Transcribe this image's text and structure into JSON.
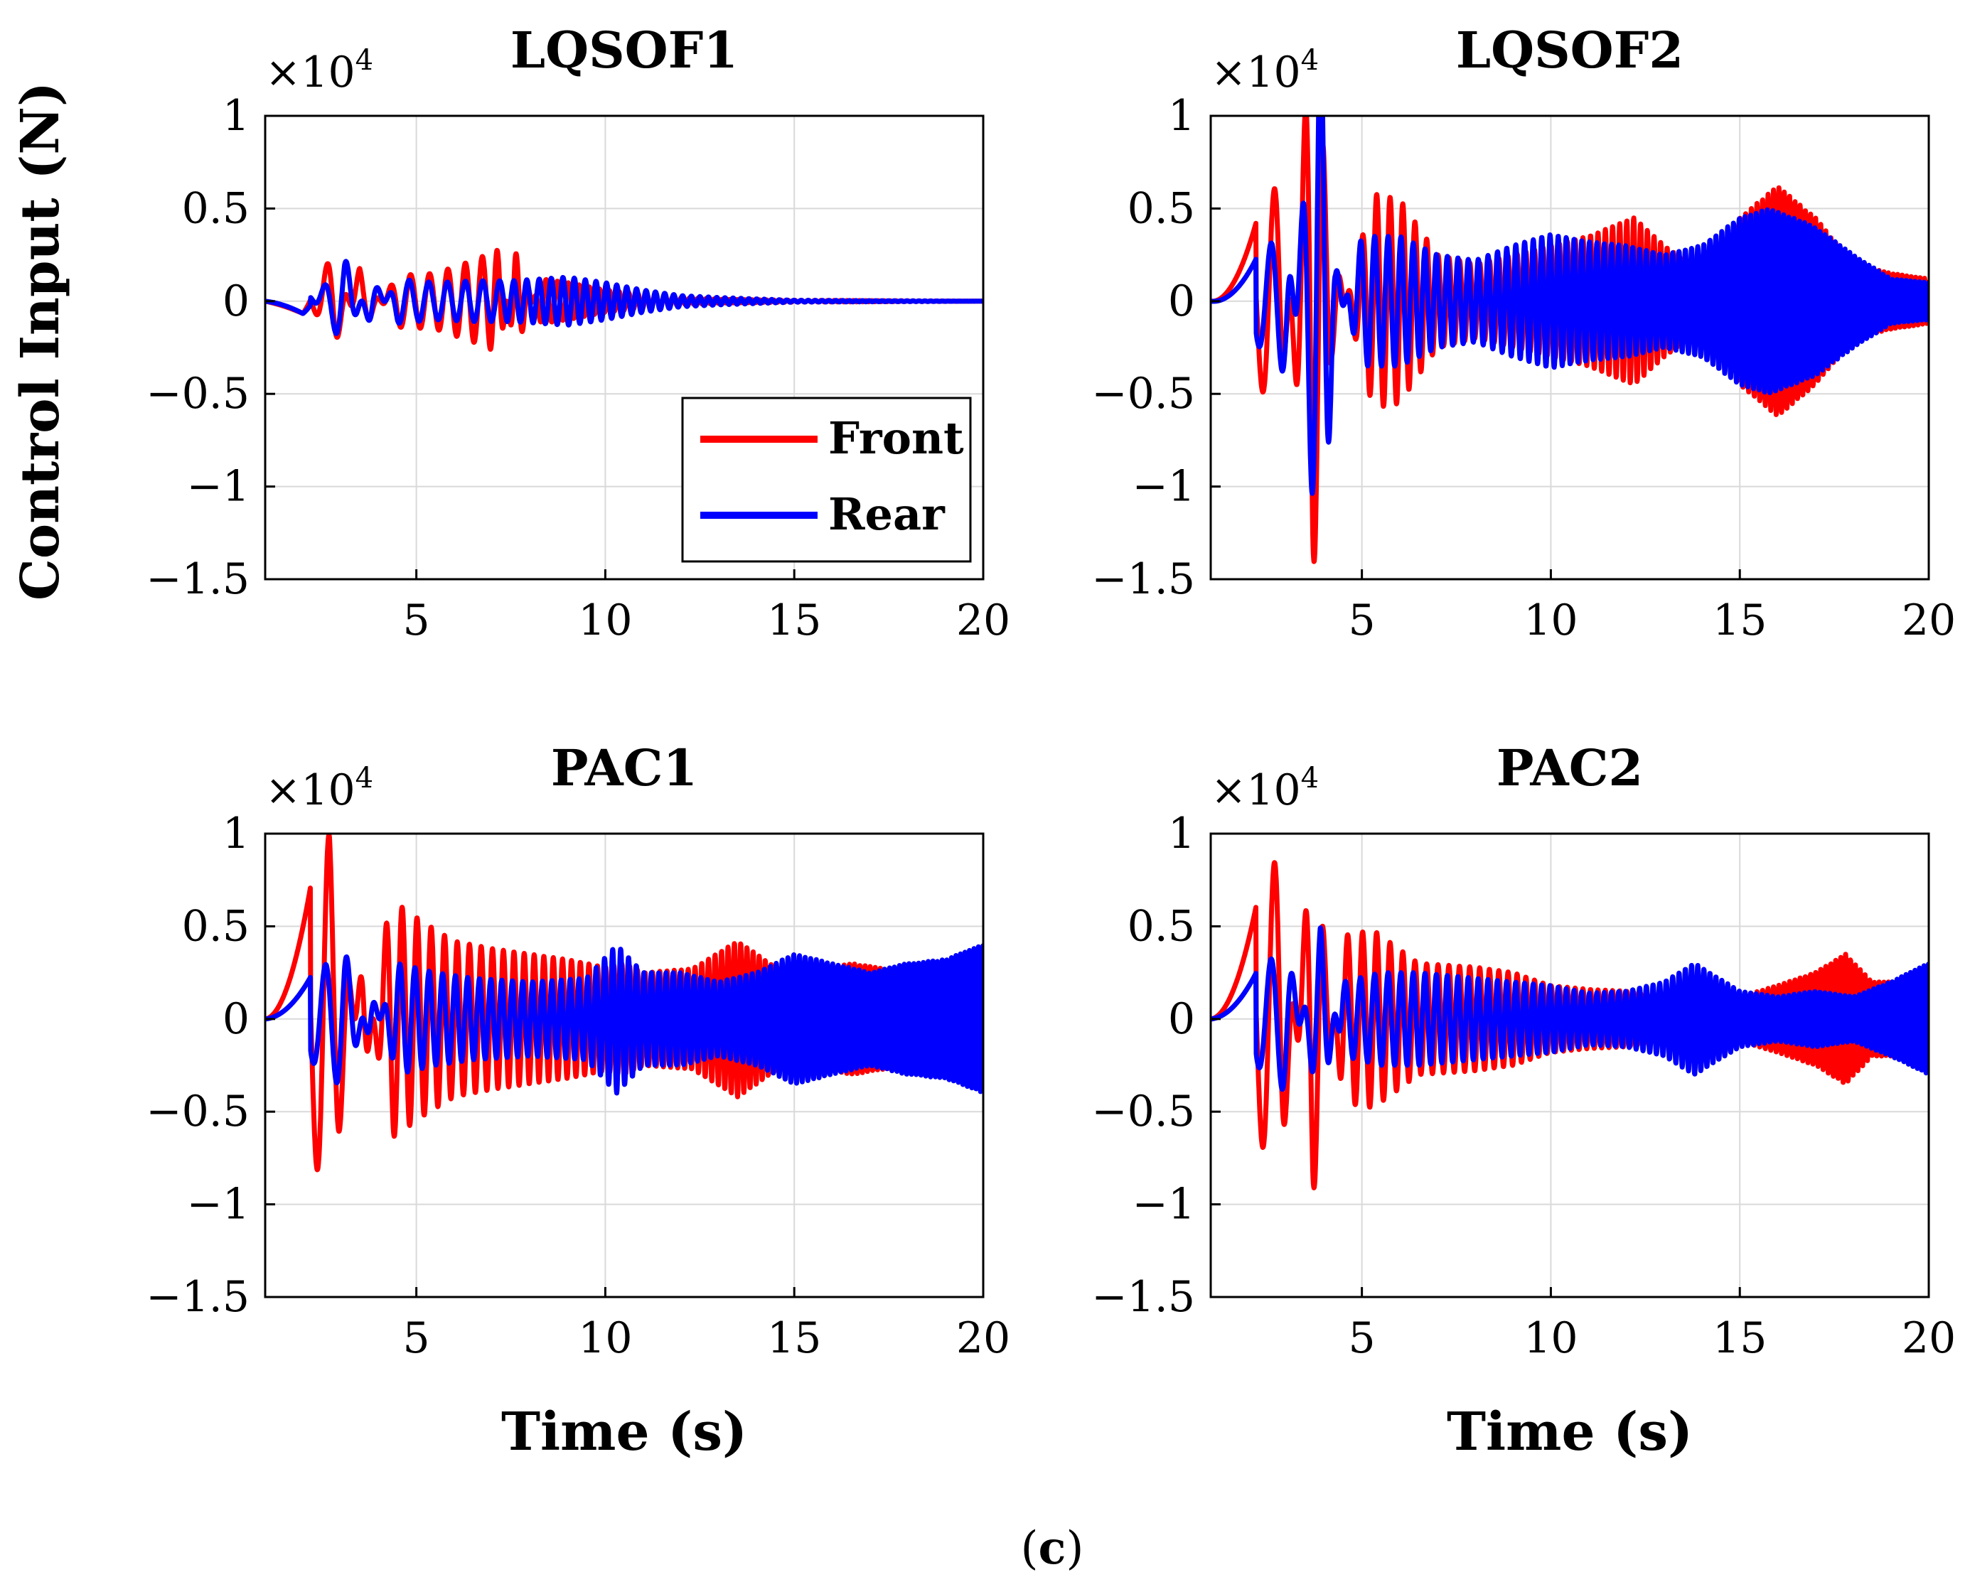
{
  "figure": {
    "caption_letter": "c",
    "caption_open": "(",
    "caption_close": ")",
    "ylabel": "Control Input (N)",
    "xlabel": "Time (s)",
    "multiplier": "×10",
    "multiplier_exponent": "4"
  },
  "colors": {
    "front": "#ff0000",
    "rear": "#0000ff",
    "grid": "#d9d9d9"
  },
  "legend": {
    "location": "lower-right of LQSOF1 panel",
    "front": "Front",
    "rear": "Rear"
  },
  "chart_data": [
    {
      "type": "line",
      "title": "LQSOF1",
      "xlim": [
        1,
        20
      ],
      "ylim": [
        -1.5,
        1
      ],
      "xticks": [
        5,
        10,
        15,
        20
      ],
      "xtick_labels": [
        "5",
        "10",
        "15",
        "20"
      ],
      "yticks": [
        1,
        0.5,
        0,
        -0.5,
        -1,
        -1.5
      ],
      "ytick_labels": [
        "1",
        "0.5",
        "0",
        "−0.5",
        "−1",
        "−1.5"
      ],
      "scale": "×10^4",
      "series": [
        {
          "name": "Front",
          "envelope": [
            [
              1,
              -0.05
            ],
            [
              2,
              -0.08
            ],
            [
              2.8,
              0.27
            ],
            [
              3.5,
              -0.18
            ],
            [
              4.5,
              0.14
            ],
            [
              5.5,
              0.15
            ],
            [
              6.5,
              0.22
            ],
            [
              7.2,
              0.28
            ],
            [
              7.6,
              -0.28
            ],
            [
              8.3,
              0.12
            ],
            [
              9,
              0.1
            ],
            [
              10,
              0.06
            ],
            [
              11,
              0.04
            ],
            [
              12,
              0.02
            ],
            [
              13,
              0.01
            ],
            [
              15,
              0.005
            ],
            [
              20,
              0.0
            ]
          ],
          "freq": [
            1.1,
            1.3,
            1.5,
            1.6,
            1.7,
            1.8,
            2.0,
            2.2,
            2.4,
            2.6,
            2.8,
            3.0,
            3.2,
            3.4,
            3.6,
            3.8,
            4.0
          ]
        },
        {
          "name": "Rear",
          "envelope": [
            [
              1,
              -0.03
            ],
            [
              2,
              -0.08
            ],
            [
              3.1,
              0.24
            ],
            [
              3.8,
              -0.14
            ],
            [
              4.5,
              0.12
            ],
            [
              5.5,
              0.1
            ],
            [
              6.5,
              0.11
            ],
            [
              7.5,
              0.11
            ],
            [
              8.3,
              0.12
            ],
            [
              9,
              0.13
            ],
            [
              10,
              0.1
            ],
            [
              11,
              0.06
            ],
            [
              12,
              0.03
            ],
            [
              13,
              0.02
            ],
            [
              15,
              0.005
            ],
            [
              20,
              0.0
            ]
          ],
          "freq": [
            1.1,
            1.3,
            1.5,
            1.6,
            1.7,
            1.8,
            2.0,
            2.2,
            2.4,
            2.6,
            2.8,
            3.0,
            3.2,
            3.4,
            3.6,
            3.8
          ]
        }
      ]
    },
    {
      "type": "line",
      "title": "LQSOF2",
      "xlim": [
        1,
        20
      ],
      "ylim": [
        -1.5,
        1
      ],
      "xticks": [
        5,
        10,
        15,
        20
      ],
      "xtick_labels": [
        "5",
        "10",
        "15",
        "20"
      ],
      "yticks": [
        1,
        0.5,
        0,
        -0.5,
        -1,
        -1.5
      ],
      "ytick_labels": [
        "1",
        "0.5",
        "0",
        "−0.5",
        "−1",
        "−1.5"
      ],
      "scale": "×10^4",
      "series": [
        {
          "name": "Front",
          "envelope": [
            [
              1,
              -0.03
            ],
            [
              2.8,
              0.65
            ],
            [
              3.7,
              -1.5
            ],
            [
              4.2,
              -0.3
            ],
            [
              5.3,
              0.58
            ],
            [
              6,
              0.55
            ],
            [
              7,
              0.25
            ],
            [
              8,
              0.2
            ],
            [
              9,
              0.25
            ],
            [
              10,
              0.3
            ],
            [
              11,
              0.35
            ],
            [
              12.2,
              0.45
            ],
            [
              13,
              0.3
            ],
            [
              14,
              0.15
            ],
            [
              15,
              0.45
            ],
            [
              16,
              0.62
            ],
            [
              17,
              0.45
            ],
            [
              18,
              0.2
            ],
            [
              19,
              0.15
            ],
            [
              20,
              0.12
            ]
          ],
          "freq": [
            1.0,
            1.2,
            1.4,
            1.6,
            1.8,
            2.0,
            2.2,
            2.4,
            2.6,
            2.8,
            3.0,
            3.2,
            3.4,
            3.6,
            3.8,
            4.0,
            4.2,
            4.4,
            4.6,
            4.8
          ]
        },
        {
          "name": "Rear",
          "envelope": [
            [
              1,
              -0.03
            ],
            [
              3,
              0.4
            ],
            [
              3.9,
              -1.5
            ],
            [
              4.3,
              -0.2
            ],
            [
              5,
              0.35
            ],
            [
              6,
              0.35
            ],
            [
              7,
              0.25
            ],
            [
              8,
              0.22
            ],
            [
              9,
              0.3
            ],
            [
              10,
              0.36
            ],
            [
              11,
              0.32
            ],
            [
              12,
              0.3
            ],
            [
              13,
              0.25
            ],
            [
              14,
              0.3
            ],
            [
              15,
              0.45
            ],
            [
              15.8,
              0.5
            ],
            [
              17,
              0.4
            ],
            [
              18,
              0.25
            ],
            [
              19,
              0.12
            ],
            [
              20,
              0.1
            ]
          ],
          "freq": [
            1.0,
            1.2,
            1.4,
            1.6,
            1.8,
            2.0,
            2.2,
            2.4,
            2.6,
            2.8,
            3.0,
            3.2,
            3.4,
            3.6,
            3.8,
            4.0,
            4.2,
            4.4,
            4.6,
            4.8
          ]
        }
      ]
    },
    {
      "type": "line",
      "title": "PAC1",
      "xlim": [
        1,
        20
      ],
      "ylim": [
        -1.5,
        1
      ],
      "xticks": [
        5,
        10,
        15,
        20
      ],
      "xtick_labels": [
        "5",
        "10",
        "15",
        "20"
      ],
      "yticks": [
        1,
        0.5,
        0,
        -0.5,
        -1,
        -1.5
      ],
      "ytick_labels": [
        "1",
        "0.5",
        "0",
        "−0.5",
        "−1",
        "−1.5"
      ],
      "scale": "×10^4",
      "series": [
        {
          "name": "Front",
          "envelope": [
            [
              1,
              0.02
            ],
            [
              2.7,
              1.0
            ],
            [
              3.6,
              -0.35
            ],
            [
              4.3,
              0.65
            ],
            [
              5.2,
              0.52
            ],
            [
              6,
              0.42
            ],
            [
              7,
              0.38
            ],
            [
              8,
              0.35
            ],
            [
              9,
              0.32
            ],
            [
              10,
              0.28
            ],
            [
              10.5,
              0.3
            ],
            [
              11,
              0.25
            ],
            [
              12.3,
              0.27
            ],
            [
              13.5,
              0.42
            ],
            [
              14.5,
              0.28
            ],
            [
              15.5,
              0.25
            ],
            [
              16.5,
              0.3
            ],
            [
              18,
              0.25
            ],
            [
              19,
              0.22
            ],
            [
              20,
              0.3
            ]
          ],
          "freq": [
            1.0,
            1.2,
            1.4,
            1.6,
            1.8,
            2.0,
            2.2,
            2.4,
            2.6,
            2.8,
            3.0,
            3.2,
            3.4,
            3.6,
            3.8,
            4.0,
            4.2,
            4.4,
            4.6,
            4.8
          ]
        },
        {
          "name": "Rear",
          "envelope": [
            [
              1,
              0.02
            ],
            [
              3.1,
              0.38
            ],
            [
              3.8,
              -0.15
            ],
            [
              4.5,
              0.3
            ],
            [
              5.5,
              0.25
            ],
            [
              6.5,
              0.22
            ],
            [
              8,
              0.2
            ],
            [
              9.5,
              0.22
            ],
            [
              10.3,
              0.4
            ],
            [
              11,
              0.25
            ],
            [
              12,
              0.25
            ],
            [
              13,
              0.2
            ],
            [
              14,
              0.25
            ],
            [
              15,
              0.35
            ],
            [
              16,
              0.3
            ],
            [
              17,
              0.25
            ],
            [
              18,
              0.3
            ],
            [
              19,
              0.32
            ],
            [
              20,
              0.4
            ]
          ],
          "freq": [
            1.0,
            1.2,
            1.4,
            1.6,
            1.8,
            2.0,
            2.2,
            2.4,
            2.6,
            2.8,
            3.0,
            3.2,
            3.4,
            3.6,
            3.8,
            4.0,
            4.2,
            4.4,
            4.6,
            4.8
          ]
        }
      ]
    },
    {
      "type": "line",
      "title": "PAC2",
      "xlim": [
        1,
        20
      ],
      "ylim": [
        -1.5,
        1
      ],
      "xticks": [
        5,
        10,
        15,
        20
      ],
      "xtick_labels": [
        "5",
        "10",
        "15",
        "20"
      ],
      "yticks": [
        1,
        0.5,
        0,
        -0.5,
        -1,
        -1.5
      ],
      "ytick_labels": [
        "1",
        "0.5",
        "0",
        "−0.5",
        "−1",
        "−1.5"
      ],
      "scale": "×10^4",
      "series": [
        {
          "name": "Front",
          "envelope": [
            [
              1,
              0.02
            ],
            [
              2.8,
              0.9
            ],
            [
              3.7,
              -0.98
            ],
            [
              4.5,
              0.45
            ],
            [
              5.3,
              0.48
            ],
            [
              6.5,
              0.3
            ],
            [
              8,
              0.28
            ],
            [
              9,
              0.25
            ],
            [
              10,
              0.18
            ],
            [
              11,
              0.16
            ],
            [
              12,
              0.15
            ],
            [
              13,
              0.12
            ],
            [
              14,
              0.12
            ],
            [
              15,
              0.12
            ],
            [
              16,
              0.18
            ],
            [
              17,
              0.25
            ],
            [
              17.8,
              0.35
            ],
            [
              18.5,
              0.2
            ],
            [
              19.5,
              0.2
            ],
            [
              20,
              0.2
            ]
          ],
          "freq": [
            1.0,
            1.2,
            1.4,
            1.6,
            1.8,
            2.0,
            2.2,
            2.4,
            2.6,
            2.8,
            3.0,
            3.2,
            3.4,
            3.6,
            3.8,
            4.0,
            4.2,
            4.4,
            4.6,
            4.8
          ]
        },
        {
          "name": "Rear",
          "envelope": [
            [
              1,
              0.02
            ],
            [
              3,
              0.4
            ],
            [
              3.9,
              -0.5
            ],
            [
              4.5,
              0.2
            ],
            [
              5.5,
              0.25
            ],
            [
              6.5,
              0.25
            ],
            [
              8,
              0.22
            ],
            [
              9,
              0.2
            ],
            [
              10,
              0.18
            ],
            [
              11,
              0.14
            ],
            [
              12,
              0.15
            ],
            [
              13,
              0.2
            ],
            [
              13.8,
              0.3
            ],
            [
              15,
              0.15
            ],
            [
              16,
              0.12
            ],
            [
              17,
              0.15
            ],
            [
              18,
              0.12
            ],
            [
              19,
              0.2
            ],
            [
              20,
              0.3
            ]
          ],
          "freq": [
            1.0,
            1.2,
            1.4,
            1.6,
            1.8,
            2.0,
            2.2,
            2.4,
            2.6,
            2.8,
            3.0,
            3.2,
            3.4,
            3.6,
            3.8,
            4.0,
            4.2,
            4.4,
            4.6,
            4.8
          ]
        }
      ]
    }
  ]
}
